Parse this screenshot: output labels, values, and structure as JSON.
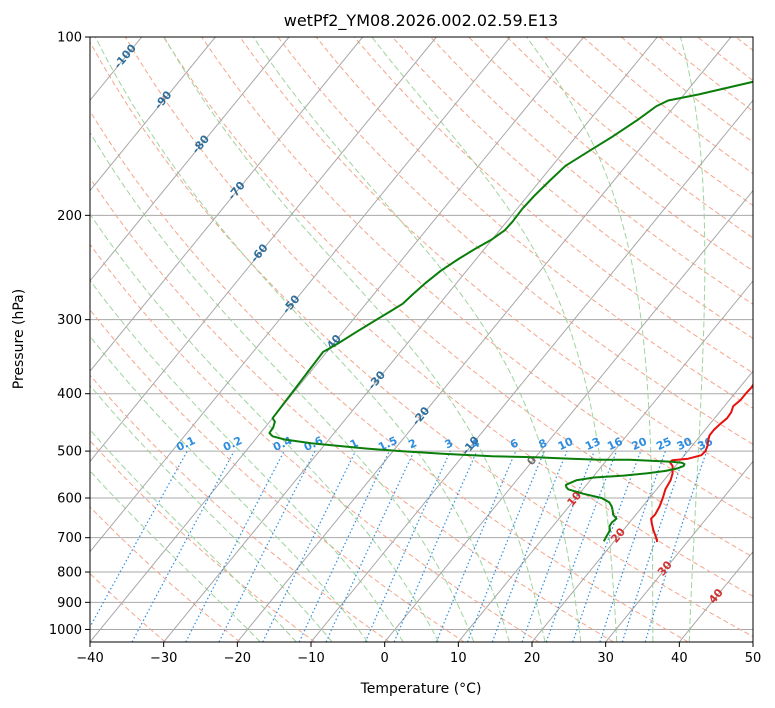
{
  "chart_data": {
    "type": "line",
    "title": "wetPf2_YM08.2026.002.02.59.E13",
    "xlabel": "Temperature (°C)",
    "ylabel": "Pressure (hPa)",
    "xlim": [
      -40,
      50
    ],
    "ylim": [
      1050,
      100
    ],
    "y_scale": "log",
    "x_ticks": [
      -40,
      -30,
      -20,
      -10,
      0,
      10,
      20,
      30,
      40,
      50
    ],
    "x_tick_labels": [
      "−40",
      "−30",
      "−20",
      "−10",
      "0",
      "10",
      "20",
      "30",
      "40",
      "50"
    ],
    "y_ticks": [
      100,
      200,
      300,
      400,
      500,
      600,
      700,
      800,
      900,
      1000
    ],
    "y_tick_labels": [
      "100",
      "200",
      "300",
      "400",
      "500",
      "600",
      "700",
      "800",
      "900",
      "1000"
    ],
    "grid": true,
    "colors": {
      "temperature": "#e8100d",
      "dewpoint": "#0a7d0a",
      "isotherm": "#2f6e9c",
      "dry_adiabat": "#f4a58a",
      "moist_adiabat": "#9ed49e",
      "mixing_ratio": "#2d8de0",
      "isotherm_pos": "#d32f2f",
      "isotherm_zero": "#707070",
      "grid": "#a8a8a8"
    },
    "series": [
      {
        "key": "temperature",
        "points": [
          [
            -1.8,
            100
          ],
          [
            -1.5,
            110
          ],
          [
            -1.2,
            120
          ],
          [
            -0.2,
            130
          ],
          [
            1.2,
            140
          ],
          [
            2.5,
            150
          ],
          [
            3.5,
            160
          ],
          [
            3.8,
            170
          ],
          [
            4.2,
            180
          ],
          [
            4.4,
            190
          ],
          [
            4.6,
            200
          ],
          [
            5.5,
            210
          ],
          [
            6.6,
            220
          ],
          [
            7.8,
            230
          ],
          [
            9.4,
            240
          ],
          [
            10.7,
            250
          ],
          [
            12.4,
            260
          ],
          [
            13.7,
            270
          ],
          [
            14.7,
            280
          ],
          [
            15.3,
            290
          ],
          [
            15.5,
            300
          ],
          [
            16,
            310
          ],
          [
            16.6,
            320
          ],
          [
            17.6,
            330
          ],
          [
            18.6,
            340
          ],
          [
            19.3,
            350
          ],
          [
            20.1,
            360
          ],
          [
            20.9,
            370
          ],
          [
            21.4,
            380
          ],
          [
            21.6,
            390
          ],
          [
            21.5,
            400
          ],
          [
            21.5,
            410
          ],
          [
            21.2,
            420
          ],
          [
            21.6,
            430
          ],
          [
            21.7,
            440
          ],
          [
            21.4,
            450
          ],
          [
            21.2,
            460
          ],
          [
            21.2,
            470
          ],
          [
            21.6,
            480
          ],
          [
            22.1,
            490
          ],
          [
            22.4,
            500
          ],
          [
            22.3,
            508
          ],
          [
            20.9,
            515
          ],
          [
            18.9,
            518
          ],
          [
            18.8,
            522
          ],
          [
            19.6,
            530
          ],
          [
            20.4,
            545
          ],
          [
            20.9,
            560
          ],
          [
            21.2,
            580
          ],
          [
            21.8,
            600
          ],
          [
            22.3,
            620
          ],
          [
            22.6,
            640
          ],
          [
            22.5,
            650
          ],
          [
            23,
            660
          ],
          [
            24.1,
            680
          ],
          [
            25,
            695
          ],
          [
            25.6,
            705
          ],
          [
            25.9,
            712
          ]
        ]
      },
      {
        "key": "dewpoint",
        "points": [
          [
            -1.5,
            100
          ],
          [
            -1.6,
            103
          ],
          [
            -2.5,
            108
          ],
          [
            -5,
            112
          ],
          [
            -11,
            118
          ],
          [
            -18,
            125
          ],
          [
            -21.5,
            128
          ],
          [
            -22.5,
            131
          ],
          [
            -23.5,
            138
          ],
          [
            -25,
            147
          ],
          [
            -26.5,
            155
          ],
          [
            -28.2,
            165
          ],
          [
            -28.7,
            175
          ],
          [
            -29.1,
            185
          ],
          [
            -29.3,
            195
          ],
          [
            -29.2,
            205
          ],
          [
            -29.3,
            212
          ],
          [
            -30.1,
            220
          ],
          [
            -31.3,
            228
          ],
          [
            -32.4,
            237
          ],
          [
            -33.5,
            248
          ],
          [
            -34.2,
            260
          ],
          [
            -34.7,
            272
          ],
          [
            -35,
            282
          ],
          [
            -35.8,
            290
          ],
          [
            -37,
            302
          ],
          [
            -38.2,
            315
          ],
          [
            -39.3,
            328
          ],
          [
            -40,
            335
          ],
          [
            -40.5,
            340
          ],
          [
            -40,
            440
          ],
          [
            -39.3,
            446
          ],
          [
            -38.9,
            456
          ],
          [
            -38.8,
            466
          ],
          [
            -38,
            472
          ],
          [
            -36,
            478
          ],
          [
            -32,
            485
          ],
          [
            -28,
            490
          ],
          [
            -24,
            495
          ],
          [
            -19,
            500
          ],
          [
            -13,
            505
          ],
          [
            -6,
            510
          ],
          [
            0,
            512
          ],
          [
            5,
            515
          ],
          [
            9,
            517
          ],
          [
            13,
            517
          ],
          [
            16,
            519
          ],
          [
            19,
            521
          ],
          [
            20.5,
            523
          ],
          [
            21,
            526
          ],
          [
            21.1,
            530
          ],
          [
            20.5,
            535
          ],
          [
            19.2,
            540
          ],
          [
            17,
            545
          ],
          [
            14,
            550
          ],
          [
            10.2,
            554
          ],
          [
            8.1,
            560
          ],
          [
            7.2,
            570
          ],
          [
            7.5,
            575
          ],
          [
            8,
            580
          ],
          [
            10.5,
            590
          ],
          [
            13.5,
            600
          ],
          [
            15,
            610
          ],
          [
            15.8,
            620
          ],
          [
            16.4,
            630
          ],
          [
            16.9,
            640
          ],
          [
            17.8,
            650
          ],
          [
            17.6,
            660
          ],
          [
            17.7,
            670
          ],
          [
            18.2,
            680
          ],
          [
            18.4,
            695
          ],
          [
            18.6,
            710
          ]
        ]
      }
    ],
    "isotherm_labels": {
      "negative": [
        "-100",
        "-90",
        "-80",
        "-70",
        "-60",
        "-50",
        "-40",
        "-30",
        "-20",
        "-10"
      ],
      "zero": "0",
      "positive": [
        "10",
        "20",
        "30",
        "40"
      ]
    },
    "mixing_ratio_labels": [
      "0.1",
      "0.2",
      "0.4",
      "0.6",
      "1",
      "1.5",
      "2",
      "3",
      "4",
      "6",
      "8",
      "10",
      "13",
      "16",
      "20",
      "25",
      "30",
      "36"
    ]
  }
}
